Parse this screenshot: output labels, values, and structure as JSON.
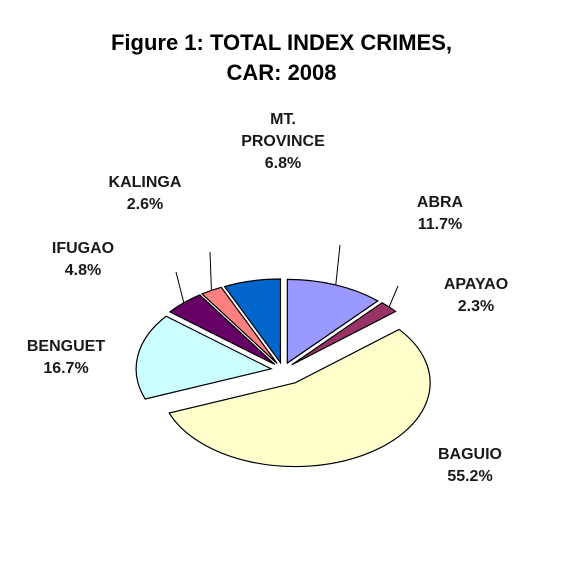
{
  "chart_data": {
    "type": "pie",
    "title_lines": [
      "Figure 1: TOTAL INDEX CRIMES,",
      "CAR: 2008"
    ],
    "slices": [
      {
        "name": "ABRA",
        "label_lines": [
          "ABRA"
        ],
        "value": 11.7,
        "value_label": "11.7%",
        "color": "#9999ff"
      },
      {
        "name": "APAYAO",
        "label_lines": [
          "APAYAO"
        ],
        "value": 2.3,
        "value_label": "2.3%",
        "color": "#993366"
      },
      {
        "name": "BAGUIO",
        "label_lines": [
          "BAGUIO"
        ],
        "value": 55.2,
        "value_label": "55.2%",
        "color": "#ffffcc"
      },
      {
        "name": "BENGUET",
        "label_lines": [
          "BENGUET"
        ],
        "value": 16.7,
        "value_label": "16.7%",
        "color": "#ccffff"
      },
      {
        "name": "IFUGAO",
        "label_lines": [
          "IFUGAO"
        ],
        "value": 4.8,
        "value_label": "4.8%",
        "color": "#660066"
      },
      {
        "name": "KALINGA",
        "label_lines": [
          "KALINGA"
        ],
        "value": 2.6,
        "value_label": "2.6%",
        "color": "#ff8080"
      },
      {
        "name": "MT. PROVINCE",
        "label_lines": [
          "MT.",
          "PROVINCE"
        ],
        "value": 6.8,
        "value_label": "6.8%",
        "color": "#0066cc"
      }
    ]
  }
}
